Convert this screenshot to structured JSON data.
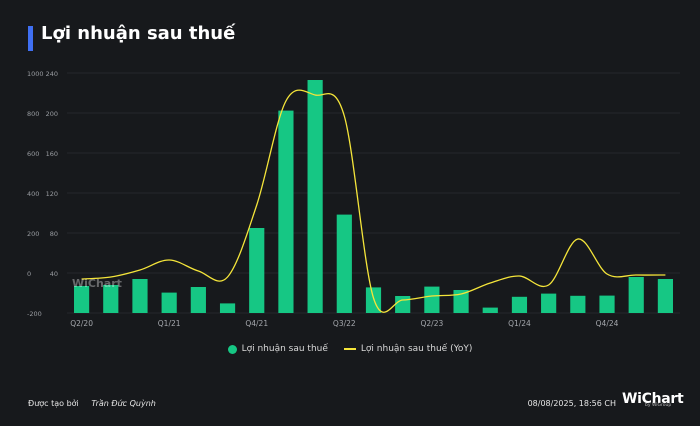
{
  "header": {
    "title": "Lợi nhuận sau thuế"
  },
  "colors": {
    "bar": "#16c784",
    "line": "#f5e53a",
    "accent": "#3f6ff2",
    "grid": "#2a2d31"
  },
  "chart_data": {
    "type": "bar",
    "title": "Lợi nhuận sau thuế",
    "x_ticks": [
      "Q2/20",
      "Q1/21",
      "Q4/21",
      "Q3/22",
      "Q2/23",
      "Q1/24",
      "Q4/24"
    ],
    "left_axis_ticks": [
      "1000",
      "800",
      "600",
      "400",
      "200",
      "0",
      "-200"
    ],
    "right_axis_ticks": [
      "240",
      "200",
      "160",
      "120",
      "80",
      "40"
    ],
    "grid": true,
    "legend_position": "bottom",
    "series": [
      {
        "name": "Lợi nhuận sau thuế",
        "type": "bar",
        "values": [
          -65,
          -60,
          -30,
          -98,
          -70,
          -152,
          225,
          812,
          965,
          292,
          -72,
          -115,
          -68,
          -85,
          -173,
          -119,
          -103,
          -114,
          -113,
          -20,
          -30
        ]
      },
      {
        "name": "Lợi nhuận sau thuế (YoY)",
        "type": "line",
        "axis": "right",
        "values": [
          34,
          36,
          43,
          53,
          42,
          36,
          108,
          212,
          218,
          197,
          15,
          13,
          17,
          19,
          30,
          37,
          28,
          74,
          39,
          38,
          38
        ]
      }
    ]
  },
  "legend": {
    "bar_label": "Lợi nhuận sau thuế",
    "line_label": "Lợi nhuận sau thuế (YoY)"
  },
  "footer": {
    "created_by": "Được tạo bởi",
    "author": "Trần Đức Quỳnh",
    "timestamp": "08/08/2025, 18:56 CH",
    "brand": "WiChart",
    "brand_sub": "by WiGroup"
  },
  "watermark": "WiChart"
}
